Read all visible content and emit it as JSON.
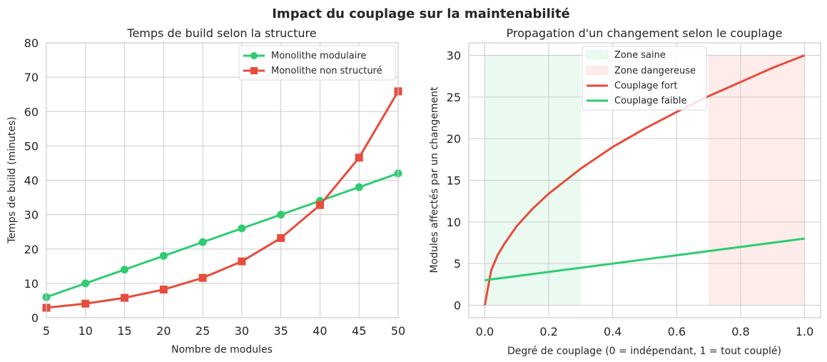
{
  "figure_title": "Impact du couplage sur la maintenabilité",
  "colors": {
    "green": "#2ecc71",
    "red": "#e74c3c",
    "zone_green": "#eafaf1",
    "zone_red": "#fdecea"
  },
  "chart_data": [
    {
      "type": "line",
      "title": "Temps de build selon la structure",
      "xlabel": "Nombre de modules",
      "ylabel": "Temps de build (minutes)",
      "xlim": [
        5,
        50
      ],
      "ylim": [
        0,
        80
      ],
      "xticks": [
        5,
        10,
        15,
        20,
        25,
        30,
        35,
        40,
        45,
        50
      ],
      "yticks": [
        0,
        10,
        20,
        30,
        40,
        50,
        60,
        70,
        80
      ],
      "x": [
        5,
        10,
        15,
        20,
        25,
        30,
        35,
        40,
        45,
        50
      ],
      "legend_position": "top-right",
      "series": [
        {
          "name": "Monolithe modulaire",
          "marker": "circle",
          "color": "#2ecc71",
          "values": [
            6,
            10,
            14,
            18,
            22,
            26,
            30,
            34,
            38,
            42
          ]
        },
        {
          "name": "Monolithe non structuré",
          "marker": "square",
          "color": "#e74c3c",
          "values": [
            2.9,
            4.1,
            5.8,
            8.2,
            11.6,
            16.4,
            23.2,
            32.8,
            46.6,
            65.9
          ]
        }
      ]
    },
    {
      "type": "line",
      "title": "Propagation d'un changement selon le couplage",
      "xlabel": "Degré de couplage (0 = indépendant, 1 = tout couplé)",
      "ylabel": "Modules affectés par un changement",
      "xlim": [
        -0.05,
        1.05
      ],
      "ylim": [
        -1.5,
        31.5
      ],
      "xticks": [
        0.0,
        0.2,
        0.4,
        0.6,
        0.8,
        1.0
      ],
      "xtick_labels": [
        "0.0",
        "0.2",
        "0.4",
        "0.6",
        "0.8",
        "1.0"
      ],
      "yticks": [
        0,
        5,
        10,
        15,
        20,
        25,
        30
      ],
      "legend_position": "top-center",
      "zones": [
        {
          "name": "Zone saine",
          "x_range": [
            0,
            0.3
          ],
          "y_range": [
            0,
            30
          ],
          "color": "#eafaf1"
        },
        {
          "name": "Zone dangereuse",
          "x_range": [
            0.7,
            1.0
          ],
          "y_range": [
            0,
            30
          ],
          "color": "#fdecea"
        }
      ],
      "series": [
        {
          "name": "Couplage fort",
          "color": "#e74c3c",
          "x": [
            0,
            0.01,
            0.02,
            0.04,
            0.06,
            0.1,
            0.15,
            0.2,
            0.3,
            0.4,
            0.5,
            0.6,
            0.7,
            0.8,
            0.9,
            1.0
          ],
          "values": [
            0,
            2.1,
            4.2,
            6.0,
            7.3,
            9.5,
            11.6,
            13.4,
            16.4,
            19.0,
            21.2,
            23.2,
            25.1,
            26.8,
            28.5,
            30
          ]
        },
        {
          "name": "Couplage faible",
          "color": "#2ecc71",
          "x": [
            0,
            1.0
          ],
          "values": [
            3,
            8
          ]
        }
      ]
    }
  ]
}
